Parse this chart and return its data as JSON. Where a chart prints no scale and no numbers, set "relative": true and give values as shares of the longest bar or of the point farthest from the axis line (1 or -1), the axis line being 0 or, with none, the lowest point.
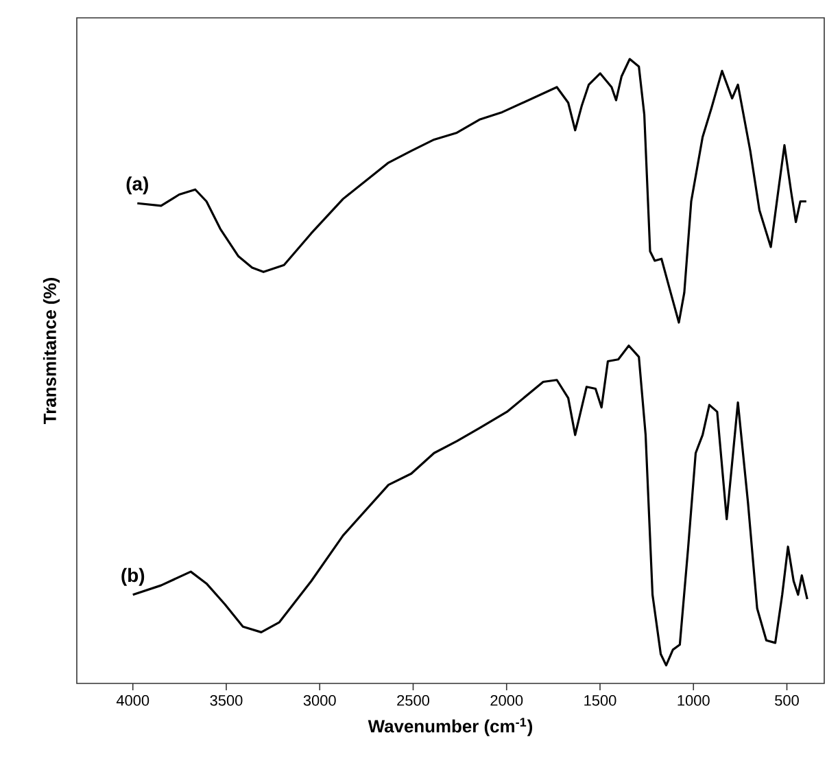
{
  "chart_data": {
    "type": "line",
    "relative": true,
    "xlabel": "Wavenumber (cm$^{-1}$)",
    "ylabel": "Transmitance (%)",
    "xlim": [
      4300,
      300
    ],
    "xticks": [
      4000,
      3500,
      3000,
      2500,
      2000,
      1500,
      1000,
      500
    ],
    "grid": false,
    "marker": "none",
    "line_style": "solid",
    "series": [
      {
        "name": "(a)",
        "color": "#000000",
        "x": [
          3976,
          3849,
          3752,
          3666,
          3606,
          3532,
          3435,
          3362,
          3301,
          3191,
          3045,
          2875,
          2632,
          2510,
          2388,
          2266,
          2145,
          2023,
          1731,
          1670,
          1633,
          1597,
          1560,
          1499,
          1438,
          1414,
          1385,
          1341,
          1292,
          1263,
          1232,
          1207,
          1171,
          1122,
          1078,
          1049,
          1012,
          951,
          903,
          847,
          793,
          762,
          696,
          647,
          586,
          550,
          513,
          477,
          452,
          428,
          396
        ],
        "values": [
          0.769,
          0.765,
          0.783,
          0.791,
          0.772,
          0.728,
          0.684,
          0.666,
          0.659,
          0.67,
          0.721,
          0.776,
          0.834,
          0.853,
          0.871,
          0.882,
          0.903,
          0.915,
          0.955,
          0.93,
          0.886,
          0.926,
          0.959,
          0.977,
          0.955,
          0.934,
          0.972,
          1,
          0.988,
          0.911,
          0.692,
          0.677,
          0.68,
          0.626,
          0.578,
          0.626,
          0.772,
          0.875,
          0.922,
          0.981,
          0.937,
          0.959,
          0.853,
          0.758,
          0.699,
          0.78,
          0.862,
          0.787,
          0.739,
          0.772,
          0.772
        ]
      },
      {
        "name": "(b)",
        "color": "#000000",
        "x": [
          4000,
          3849,
          3690,
          3606,
          3508,
          3411,
          3313,
          3216,
          3045,
          2875,
          2632,
          2510,
          2388,
          2266,
          2145,
          1998,
          1804,
          1731,
          1670,
          1633,
          1572,
          1524,
          1492,
          1458,
          1402,
          1346,
          1292,
          1256,
          1219,
          1175,
          1146,
          1110,
          1073,
          1029,
          988,
          951,
          915,
          873,
          822,
          762,
          708,
          659,
          610,
          562,
          525,
          494,
          464,
          440,
          420,
          391
        ],
        "values": [
          0.142,
          0.157,
          0.179,
          0.16,
          0.127,
          0.091,
          0.082,
          0.098,
          0.164,
          0.237,
          0.318,
          0.336,
          0.369,
          0.388,
          0.409,
          0.435,
          0.483,
          0.486,
          0.457,
          0.398,
          0.475,
          0.472,
          0.442,
          0.516,
          0.519,
          0.541,
          0.523,
          0.398,
          0.142,
          0.047,
          0.029,
          0.054,
          0.062,
          0.215,
          0.369,
          0.398,
          0.446,
          0.435,
          0.263,
          0.45,
          0.289,
          0.12,
          0.069,
          0.065,
          0.142,
          0.219,
          0.164,
          0.142,
          0.173,
          0.135
        ]
      }
    ]
  }
}
